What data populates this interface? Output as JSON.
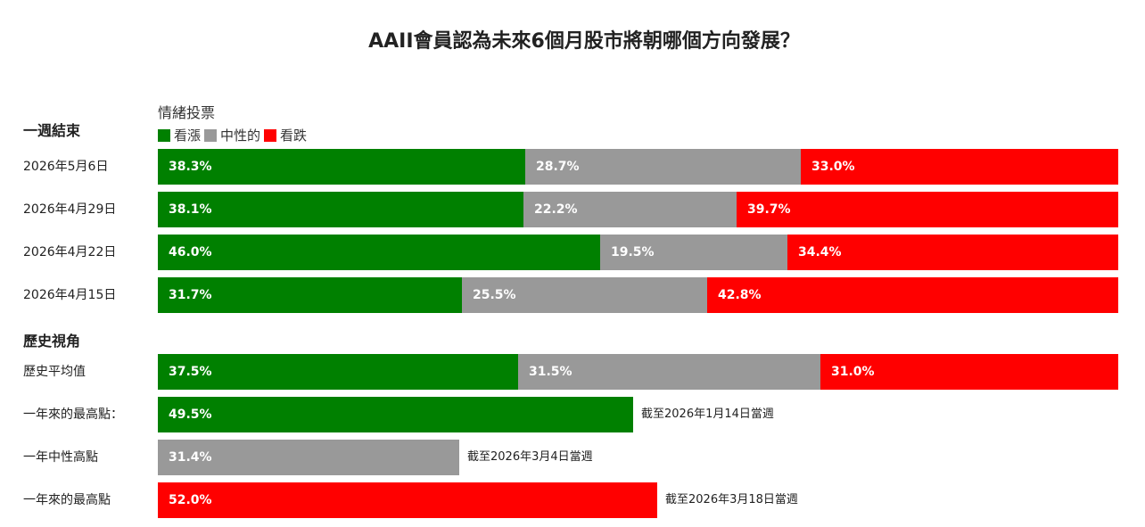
{
  "chart_data": {
    "type": "bar",
    "title": "AAII會員認為未來6個月股市將朝哪個方向發展？",
    "legend_title": "情緒投票",
    "legend_placement": "top-left",
    "series": [
      {
        "name": "看漲",
        "color": "#008000"
      },
      {
        "name": "中性的",
        "color": "#999999"
      },
      {
        "name": "看跌",
        "color": "#ff0000"
      }
    ],
    "sections": [
      {
        "heading": "一週結束",
        "rows": [
          {
            "label": "2026年5月6日",
            "values": [
              38.3,
              28.7,
              33.0
            ],
            "texts": [
              "38.3%",
              "28.7%",
              "33.0%"
            ]
          },
          {
            "label": "2026年4月29日",
            "values": [
              38.1,
              22.2,
              39.7
            ],
            "texts": [
              "38.1%",
              "22.2%",
              "39.7%"
            ]
          },
          {
            "label": "2026年4月22日",
            "values": [
              46.0,
              19.5,
              34.4
            ],
            "texts": [
              "46.0%",
              "19.5%",
              "34.4%"
            ]
          },
          {
            "label": "2026年4月15日",
            "values": [
              31.7,
              25.5,
              42.8
            ],
            "texts": [
              "31.7%",
              "25.5%",
              "42.8%"
            ]
          }
        ]
      },
      {
        "heading": "歷史視角",
        "rows": [
          {
            "label": "歷史平均值",
            "values": [
              37.5,
              31.5,
              31.0
            ],
            "texts": [
              "37.5%",
              "31.5%",
              "31.0%"
            ]
          },
          {
            "label": "一年來的最高點：",
            "values": [
              49.5
            ],
            "texts": [
              "49.5%"
            ],
            "series_index": [
              0
            ],
            "note": "截至2026年1月14日當週"
          },
          {
            "label": "一年中性高點",
            "values": [
              31.4
            ],
            "texts": [
              "31.4%"
            ],
            "series_index": [
              1
            ],
            "note": "截至2026年3月4日當週"
          },
          {
            "label": "一年來的最高點",
            "values": [
              52.0
            ],
            "texts": [
              "52.0%"
            ],
            "series_index": [
              2
            ],
            "note": "截至2026年3月18日當週"
          }
        ]
      }
    ]
  }
}
